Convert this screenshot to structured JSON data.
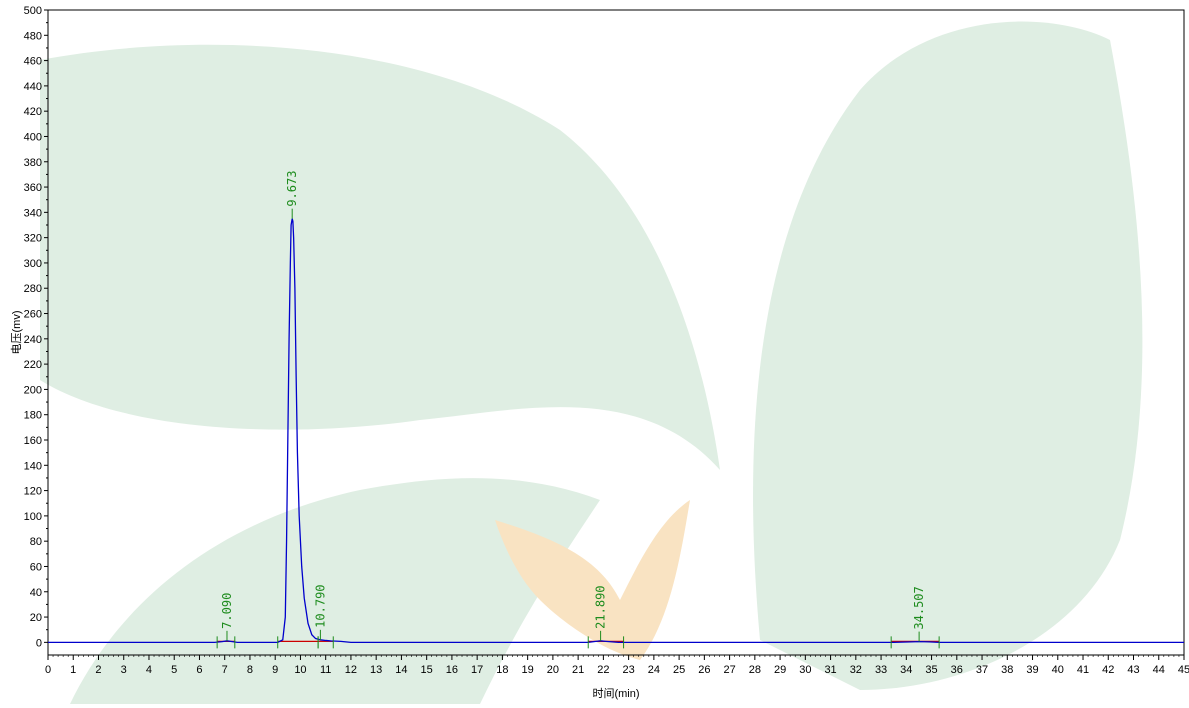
{
  "chart_data": {
    "type": "line",
    "xlabel": "时间(min)",
    "ylabel": "电压(mv)",
    "xlim": [
      0,
      45
    ],
    "ylim": [
      -10,
      500
    ],
    "x_ticks": [
      0,
      1,
      2,
      3,
      4,
      5,
      6,
      7,
      8,
      9,
      10,
      11,
      12,
      13,
      14,
      15,
      16,
      17,
      18,
      19,
      20,
      21,
      22,
      23,
      24,
      25,
      26,
      27,
      28,
      29,
      30,
      31,
      32,
      33,
      34,
      35,
      36,
      37,
      38,
      39,
      40,
      41,
      42,
      43,
      44,
      45
    ],
    "y_ticks": [
      0,
      20,
      40,
      60,
      80,
      100,
      120,
      140,
      160,
      180,
      200,
      220,
      240,
      260,
      280,
      300,
      320,
      340,
      360,
      380,
      400,
      420,
      440,
      460,
      480,
      500
    ],
    "grid": false,
    "series": [
      {
        "color": "#0000cc",
        "points": [
          [
            0,
            0
          ],
          [
            6.6,
            0
          ],
          [
            6.9,
            0.6
          ],
          [
            7.09,
            1.2
          ],
          [
            7.3,
            0.6
          ],
          [
            7.5,
            0
          ],
          [
            9.1,
            0
          ],
          [
            9.3,
            2
          ],
          [
            9.4,
            20
          ],
          [
            9.45,
            80
          ],
          [
            9.5,
            160
          ],
          [
            9.55,
            240
          ],
          [
            9.6,
            300
          ],
          [
            9.63,
            330
          ],
          [
            9.673,
            335
          ],
          [
            9.7,
            333
          ],
          [
            9.73,
            320
          ],
          [
            9.78,
            280
          ],
          [
            9.83,
            210
          ],
          [
            9.88,
            150
          ],
          [
            9.95,
            100
          ],
          [
            10.05,
            60
          ],
          [
            10.15,
            35
          ],
          [
            10.3,
            15
          ],
          [
            10.45,
            6
          ],
          [
            10.6,
            3
          ],
          [
            10.79,
            2
          ],
          [
            11.0,
            1.5
          ],
          [
            11.2,
            1.2
          ],
          [
            11.6,
            0.8
          ],
          [
            12.0,
            0
          ],
          [
            21.4,
            0
          ],
          [
            21.7,
            0.8
          ],
          [
            21.89,
            1.2
          ],
          [
            22.1,
            0.8
          ],
          [
            22.6,
            0
          ],
          [
            33.5,
            0
          ],
          [
            34.2,
            0.4
          ],
          [
            34.507,
            0.6
          ],
          [
            34.9,
            0.4
          ],
          [
            35.3,
            0
          ],
          [
            45,
            0
          ]
        ]
      }
    ],
    "peaks": [
      {
        "label": "7.090",
        "x": 7.09,
        "apex": 1.2,
        "start": 6.7,
        "end": 7.4
      },
      {
        "label": "9.673",
        "x": 9.673,
        "apex": 335,
        "start": 9.1,
        "end": 10.7
      },
      {
        "label": "10.790",
        "x": 10.79,
        "apex": 2,
        "start": 10.7,
        "end": 11.3
      },
      {
        "label": "21.890",
        "x": 21.89,
        "apex": 1.2,
        "start": 21.4,
        "end": 22.8
      },
      {
        "label": "34.507",
        "x": 34.507,
        "apex": 0.6,
        "start": 33.4,
        "end": 35.3
      }
    ],
    "colors": {
      "trace": "#0000cc",
      "baseline": "#cc0000",
      "peak_label": "#1e8c1e",
      "peak_marker": "#1e8c1e"
    }
  }
}
